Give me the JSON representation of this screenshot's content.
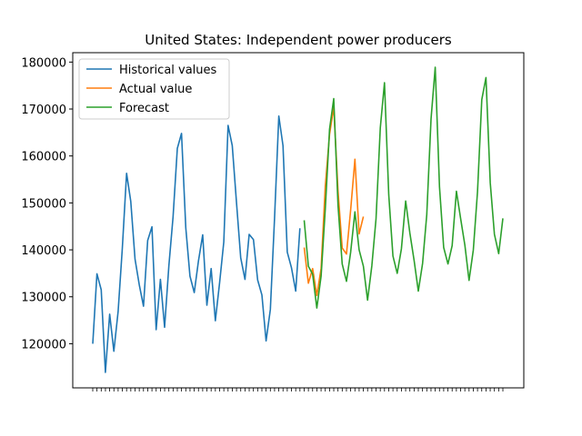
{
  "chart_data": {
    "type": "line",
    "title": "United States: Independent power producers",
    "xlabel": "",
    "ylabel": "",
    "ylim": [
      110600,
      182000
    ],
    "yticks": [
      120000,
      130000,
      140000,
      150000,
      160000,
      170000,
      180000
    ],
    "ytick_labels": [
      "120000",
      "130000",
      "140000",
      "150000",
      "160000",
      "170000",
      "180000"
    ],
    "legend_position": "top-left",
    "grid": false,
    "series": [
      {
        "name": "Historical values",
        "color": "#1f77b4",
        "x_start": 0,
        "values": [
          120000,
          134900,
          131500,
          113900,
          126300,
          118400,
          126900,
          140300,
          156300,
          150300,
          138000,
          132600,
          128000,
          142000,
          144900,
          123000,
          133700,
          123500,
          136600,
          147000,
          161600,
          164800,
          144700,
          134400,
          130900,
          137600,
          143200,
          128200,
          136000,
          124900,
          133000,
          141700,
          166500,
          162200,
          150000,
          138300,
          133700,
          143300,
          142200,
          133600,
          130400,
          120600,
          127300,
          146700,
          168500,
          162200,
          139500,
          136200,
          131200,
          144600
        ]
      },
      {
        "name": "Actual value",
        "color": "#ff7f0e",
        "x_start": 50,
        "values": [
          140500,
          132900,
          136000,
          130300,
          136000,
          153600,
          164600,
          170400,
          152600,
          140400,
          139100,
          148500,
          159300,
          143400,
          147100
        ]
      },
      {
        "name": "Forecast",
        "color": "#2ca02c",
        "x_start": 50,
        "values": [
          146300,
          136500,
          134800,
          127600,
          134400,
          148700,
          165700,
          172200,
          149500,
          137000,
          133300,
          139500,
          148100,
          140000,
          136500,
          129300,
          136600,
          146600,
          166000,
          175600,
          151700,
          138700,
          135000,
          140200,
          150400,
          143600,
          137700,
          131200,
          137100,
          147500,
          167900,
          178900,
          153400,
          140500,
          137000,
          140900,
          152500,
          146700,
          141000,
          133500,
          140000,
          152400,
          172000,
          176700,
          154300,
          143300,
          139200,
          146700
        ]
      }
    ],
    "n_points": 98
  }
}
